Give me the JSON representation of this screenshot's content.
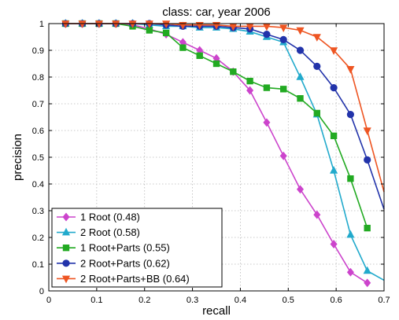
{
  "chart_data": {
    "type": "line",
    "title": "class: car, year 2006",
    "xlabel": "recall",
    "ylabel": "precision",
    "xlim": [
      0,
      0.7
    ],
    "ylim": [
      0,
      1
    ],
    "xticks": [
      "0",
      "0.1",
      "0.2",
      "0.3",
      "0.4",
      "0.5",
      "0.6",
      "0.7"
    ],
    "yticks": [
      "0",
      "0.1",
      "0.2",
      "0.3",
      "0.4",
      "0.5",
      "0.6",
      "0.7",
      "0.8",
      "0.9",
      "1"
    ],
    "grid": true,
    "legend_position": "bottom-left",
    "series": [
      {
        "name": "1 Root (0.48)",
        "color": "#cc44cc",
        "marker": "diamond",
        "x": [
          0.035,
          0.07,
          0.105,
          0.14,
          0.175,
          0.21,
          0.245,
          0.28,
          0.315,
          0.35,
          0.385,
          0.42,
          0.455,
          0.49,
          0.525,
          0.56,
          0.595,
          0.63,
          0.665
        ],
        "y": [
          1.0,
          1.0,
          1.0,
          1.0,
          0.995,
          0.98,
          0.96,
          0.93,
          0.9,
          0.87,
          0.82,
          0.75,
          0.63,
          0.505,
          0.38,
          0.285,
          0.175,
          0.07,
          0.03
        ]
      },
      {
        "name": "2 Root (0.58)",
        "color": "#22aacc",
        "marker": "triangle-up",
        "x": [
          0.035,
          0.07,
          0.105,
          0.14,
          0.175,
          0.21,
          0.245,
          0.28,
          0.315,
          0.35,
          0.385,
          0.42,
          0.455,
          0.49,
          0.525,
          0.56,
          0.595,
          0.63,
          0.665,
          0.7
        ],
        "y": [
          1.0,
          1.0,
          1.0,
          1.0,
          1.0,
          0.995,
          0.99,
          0.99,
          0.985,
          0.985,
          0.98,
          0.97,
          0.95,
          0.93,
          0.8,
          0.66,
          0.45,
          0.21,
          0.075,
          0.04
        ]
      },
      {
        "name": "1 Root+Parts (0.55)",
        "color": "#22aa22",
        "marker": "square",
        "x": [
          0.035,
          0.07,
          0.105,
          0.14,
          0.175,
          0.21,
          0.245,
          0.28,
          0.315,
          0.35,
          0.385,
          0.42,
          0.455,
          0.49,
          0.525,
          0.56,
          0.595,
          0.63,
          0.665
        ],
        "y": [
          1.0,
          1.0,
          1.0,
          1.0,
          0.99,
          0.975,
          0.965,
          0.91,
          0.88,
          0.85,
          0.82,
          0.785,
          0.76,
          0.755,
          0.72,
          0.665,
          0.58,
          0.42,
          0.235
        ]
      },
      {
        "name": "2 Root+Parts (0.62)",
        "color": "#2233aa",
        "marker": "circle",
        "x": [
          0.035,
          0.07,
          0.105,
          0.14,
          0.175,
          0.21,
          0.245,
          0.28,
          0.315,
          0.35,
          0.385,
          0.42,
          0.455,
          0.49,
          0.525,
          0.56,
          0.595,
          0.63,
          0.665,
          0.7
        ],
        "y": [
          1.0,
          1.0,
          1.0,
          1.0,
          1.0,
          1.0,
          0.995,
          0.99,
          0.99,
          0.99,
          0.985,
          0.98,
          0.96,
          0.94,
          0.9,
          0.84,
          0.76,
          0.66,
          0.49,
          0.305
        ]
      },
      {
        "name": "2 Root+Parts+BB (0.64)",
        "color": "#ee5522",
        "marker": "triangle-down",
        "x": [
          0.035,
          0.07,
          0.105,
          0.14,
          0.175,
          0.21,
          0.245,
          0.28,
          0.315,
          0.35,
          0.385,
          0.42,
          0.455,
          0.49,
          0.525,
          0.56,
          0.595,
          0.63,
          0.665,
          0.7
        ],
        "y": [
          1.0,
          1.0,
          1.0,
          1.0,
          1.0,
          1.0,
          1.0,
          0.995,
          0.995,
          0.995,
          0.99,
          0.99,
          0.99,
          0.985,
          0.975,
          0.95,
          0.9,
          0.83,
          0.6,
          0.37
        ]
      }
    ]
  }
}
